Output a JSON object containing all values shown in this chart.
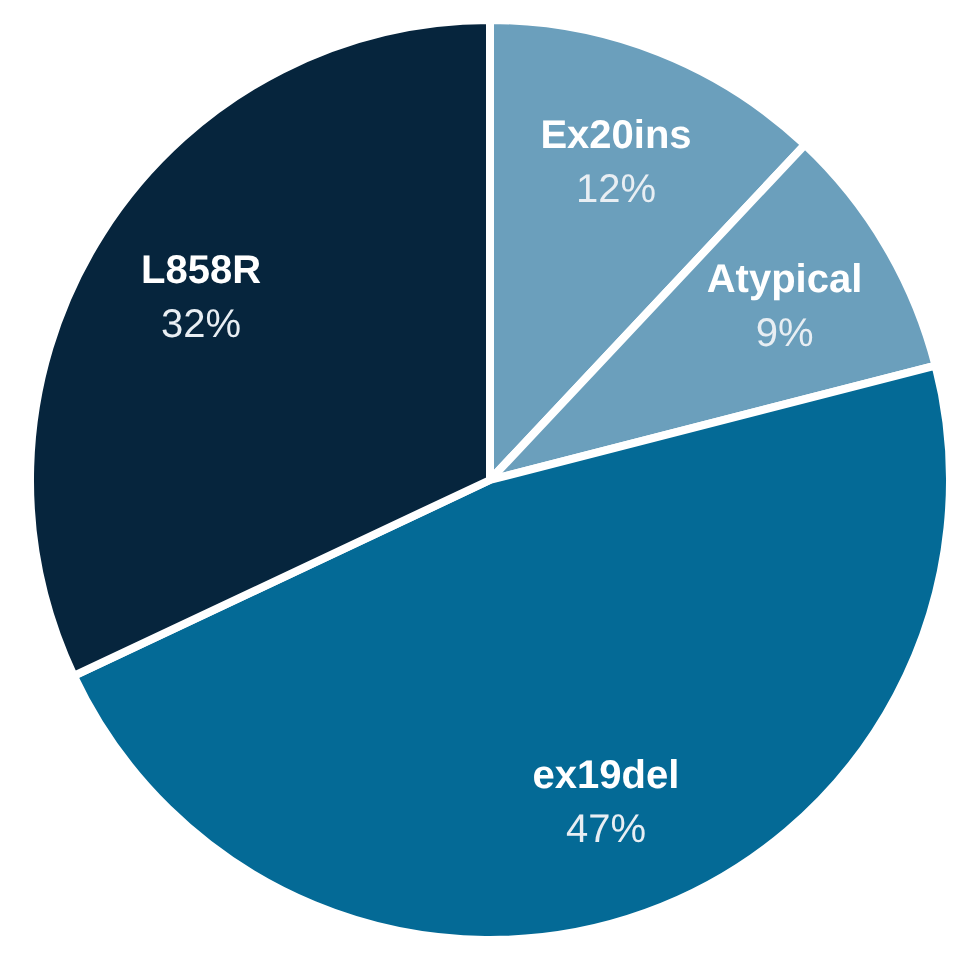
{
  "chart_data": {
    "type": "pie",
    "categories": [
      "Ex20ins",
      "Atypical",
      "ex19del",
      "L858R"
    ],
    "values": [
      12,
      9,
      47,
      32
    ],
    "colors": [
      "#6b9fbc",
      "#6b9fbc",
      "#046a96",
      "#06253d"
    ],
    "value_labels": [
      "12%",
      "9%",
      "47%",
      "32%"
    ],
    "legend": false
  }
}
